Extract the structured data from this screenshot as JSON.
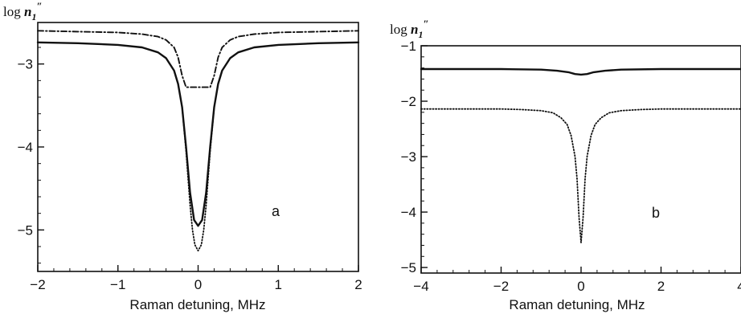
{
  "chart_data": [
    {
      "type": "line",
      "panel_label": "a",
      "ylabel": "log n1''",
      "xlabel": "Raman detuning, MHz",
      "xlim": [
        -2,
        2
      ],
      "ylim": [
        -5.5,
        -2.5
      ],
      "xticks": [
        "−2",
        "−1",
        "0",
        "1",
        "2"
      ],
      "yticks": [
        "−3",
        "−4",
        "−5"
      ],
      "grid": false,
      "series": [
        {
          "style": "solid",
          "x": [
            -2.0,
            -1.5,
            -1.0,
            -0.7,
            -0.5,
            -0.4,
            -0.3,
            -0.25,
            -0.2,
            -0.15,
            -0.1,
            -0.05,
            0.0,
            0.05,
            0.1,
            0.15,
            0.2,
            0.25,
            0.3,
            0.4,
            0.5,
            0.7,
            1.0,
            1.5,
            2.0
          ],
          "y": [
            -2.74,
            -2.75,
            -2.77,
            -2.8,
            -2.86,
            -2.93,
            -3.08,
            -3.24,
            -3.52,
            -4.0,
            -4.55,
            -4.88,
            -4.95,
            -4.88,
            -4.55,
            -4.0,
            -3.52,
            -3.24,
            -3.08,
            -2.93,
            -2.86,
            -2.8,
            -2.77,
            -2.75,
            -2.74
          ]
        },
        {
          "style": "dotted",
          "x": [
            -0.2,
            -0.15,
            -0.1,
            -0.07,
            -0.04,
            0.0,
            0.04,
            0.07,
            0.1,
            0.15,
            0.2
          ],
          "y": [
            -3.52,
            -4.05,
            -4.7,
            -5.0,
            -5.18,
            -5.25,
            -5.18,
            -5.0,
            -4.7,
            -4.05,
            -3.52
          ]
        },
        {
          "style": "dashdot",
          "x": [
            -2.0,
            -1.5,
            -1.0,
            -0.7,
            -0.5,
            -0.4,
            -0.3,
            -0.25,
            -0.2,
            -0.15,
            -0.1,
            -0.05,
            0.0,
            0.05,
            0.1,
            0.15,
            0.2,
            0.25,
            0.3,
            0.4,
            0.5,
            0.7,
            1.0,
            1.5,
            2.0
          ],
          "y": [
            -2.6,
            -2.61,
            -2.62,
            -2.64,
            -2.67,
            -2.71,
            -2.8,
            -2.92,
            -3.14,
            -3.28,
            -3.28,
            -3.28,
            -3.28,
            -3.28,
            -3.28,
            -3.28,
            -3.14,
            -2.92,
            -2.8,
            -2.71,
            -2.67,
            -2.64,
            -2.62,
            -2.61,
            -2.6
          ]
        }
      ]
    },
    {
      "type": "line",
      "panel_label": "b",
      "ylabel": "log n1''",
      "xlabel": "Raman detuning, MHz",
      "xlim": [
        -4,
        4
      ],
      "ylim": [
        -5.1,
        -1.0
      ],
      "xticks": [
        "−4",
        "−2",
        "0",
        "2",
        "4"
      ],
      "yticks": [
        "−1",
        "−2",
        "−3",
        "−4",
        "−5"
      ],
      "grid": false,
      "series": [
        {
          "style": "solid",
          "x": [
            -4.0,
            -3.0,
            -2.0,
            -1.0,
            -0.6,
            -0.3,
            -0.15,
            0.0,
            0.15,
            0.3,
            0.6,
            1.0,
            2.0,
            3.0,
            4.0
          ],
          "y": [
            -1.42,
            -1.42,
            -1.42,
            -1.43,
            -1.45,
            -1.48,
            -1.51,
            -1.52,
            -1.51,
            -1.48,
            -1.45,
            -1.43,
            -1.42,
            -1.42,
            -1.42
          ]
        },
        {
          "style": "dotted",
          "x": [
            -4.0,
            -3.0,
            -2.0,
            -1.5,
            -1.0,
            -0.7,
            -0.5,
            -0.35,
            -0.25,
            -0.15,
            -0.1,
            -0.05,
            0.0,
            0.05,
            0.1,
            0.15,
            0.25,
            0.35,
            0.5,
            0.7,
            1.0,
            1.5,
            2.0,
            3.0,
            4.0
          ],
          "y": [
            -2.14,
            -2.14,
            -2.14,
            -2.15,
            -2.17,
            -2.21,
            -2.3,
            -2.42,
            -2.62,
            -3.0,
            -3.4,
            -4.1,
            -4.55,
            -4.1,
            -3.4,
            -3.0,
            -2.62,
            -2.42,
            -2.3,
            -2.21,
            -2.17,
            -2.15,
            -2.14,
            -2.14,
            -2.14
          ]
        }
      ]
    }
  ]
}
